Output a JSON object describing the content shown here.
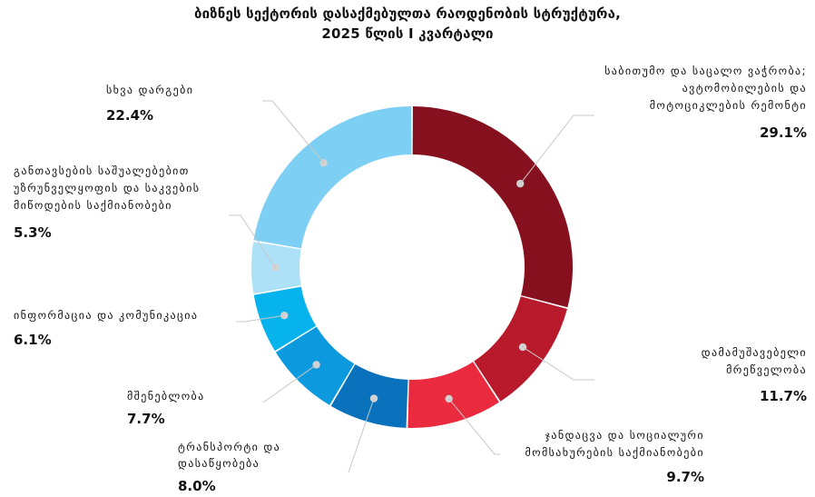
{
  "title_lines": [
    "ბიზნეს სექტორის დასაქმებულთა რაოდენობის სტრუქტურა,",
    "2025 წლის I კვარტალი"
  ],
  "chart_data": {
    "type": "pie",
    "donut": true,
    "title": "ბიზნეს სექტორის დასაქმებულთა რაოდენობის სტრუქტურა, 2025 წლის I კვარტალი",
    "unit": "%",
    "categories": [
      "საბითუმო და საცალო ვაჭრობა; ავტომობილების და მოტოციკლების რემონტი",
      "დამამუშავებელი მრეწველობა",
      "ჯანდაცვა და სოციალური მომსახურების საქმიანობები",
      "ტრანსპორტი და დასაწყობება",
      "მშენებლობა",
      "ინფორმაცია და კომუნიკაცია",
      "განთავსების საშუალებებით უზრუნველყოფის და საკვების მიწოდების საქმიანობები",
      "სხვა დარგები"
    ],
    "values": [
      29.1,
      11.7,
      9.7,
      8.0,
      7.7,
      6.1,
      5.3,
      22.4
    ],
    "value_labels": [
      "29.1%",
      "11.7%",
      "9.7%",
      "8.0%",
      "7.7%",
      "6.1%",
      "5.3%",
      "22.4%"
    ],
    "colors": [
      "#87101f",
      "#b81a2c",
      "#ea2a3f",
      "#0a71bd",
      "#0d99dd",
      "#06b3ec",
      "#ade1f7",
      "#7ecff4"
    ],
    "label_lines": [
      [
        "საბითუმო და საცალო ვაჭრობა;",
        "ავტომობილების და",
        "მოტოციკლების რემონტი"
      ],
      [
        "დამამუშავებელი",
        "მრეწველობა"
      ],
      [
        "ჯანდაცვა და სოციალური",
        "მომსახურების საქმიანობები"
      ],
      [
        "ტრანსპორტი და",
        "დასაწყობება"
      ],
      [
        "მშენებლობა"
      ],
      [
        "ინფორმაცია და კომუნიკაცია"
      ],
      [
        "განთავსების საშუალებებით",
        "უზრუნველყოფის და საკვების",
        "მიწოდების საქმიანობები"
      ],
      [
        "სხვა დარგები"
      ]
    ],
    "legend": "none"
  }
}
